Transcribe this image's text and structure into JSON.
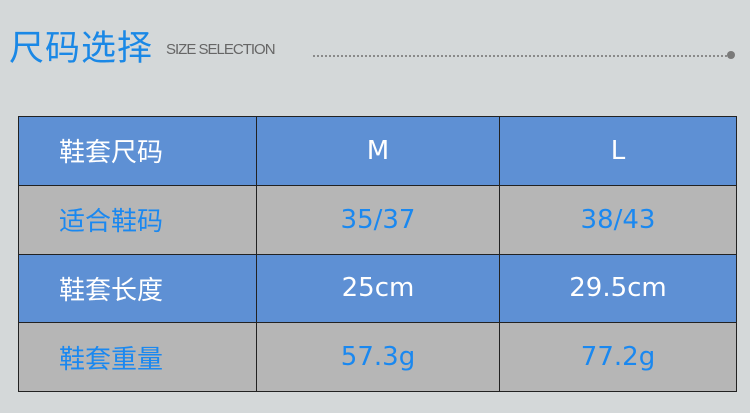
{
  "header": {
    "title": "尺码选择",
    "subtitle": "SIZE SELECTION"
  },
  "colors": {
    "accent": "#1a88e6",
    "header_row": "#5e90d4",
    "alt_row": "#b6b6b6",
    "background": "#d4d8d9"
  },
  "table": {
    "rows": [
      {
        "label": "鞋套尺码",
        "m": "M",
        "l": "L"
      },
      {
        "label": "适合鞋码",
        "m": "35/37",
        "l": "38/43"
      },
      {
        "label": "鞋套长度",
        "m": "25cm",
        "l": "29.5cm"
      },
      {
        "label": "鞋套重量",
        "m": "57.3g",
        "l": "77.2g"
      }
    ]
  }
}
